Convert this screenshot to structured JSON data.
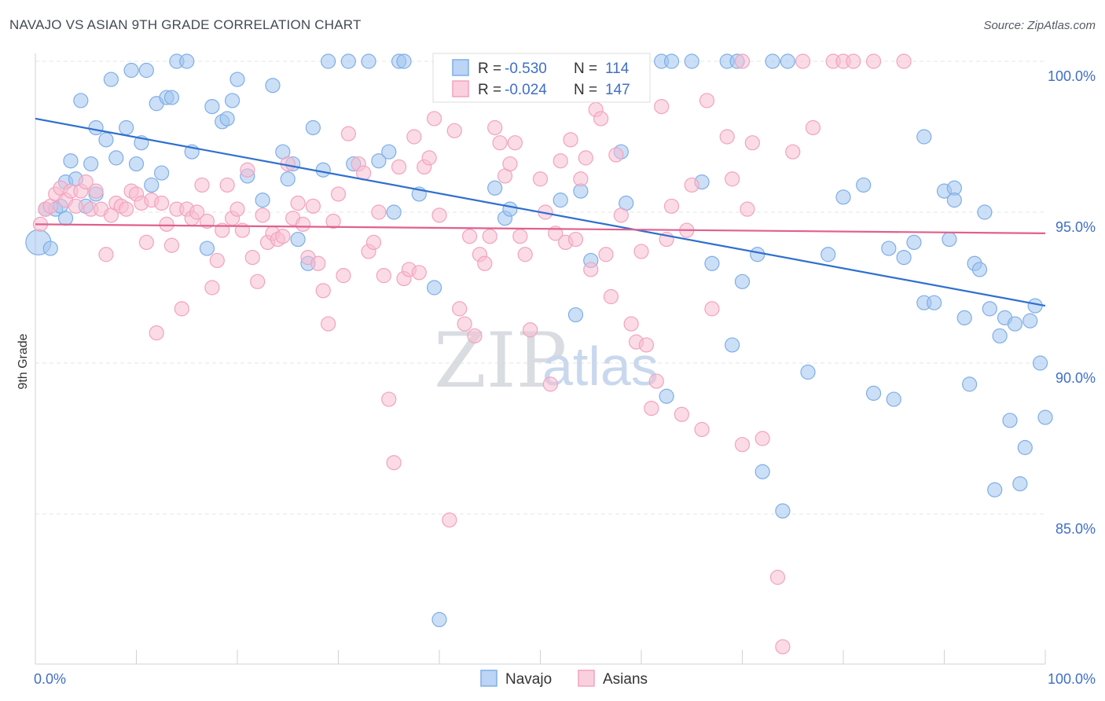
{
  "title": "NAVAJO VS ASIAN 9TH GRADE CORRELATION CHART",
  "source": "Source: ZipAtlas.com",
  "chart_data": {
    "type": "scatter",
    "title": "NAVAJO VS ASIAN 9TH GRADE CORRELATION CHART",
    "xlabel": "",
    "ylabel": "9th Grade",
    "xlim": [
      0,
      100
    ],
    "ylim": [
      80.0,
      101.0
    ],
    "x_tick_labels": [
      "0.0%",
      "100.0%"
    ],
    "y_ticks": [
      85.0,
      90.0,
      95.0,
      100.0
    ],
    "y_tick_labels": [
      "85.0%",
      "90.0%",
      "95.0%",
      "100.0%"
    ],
    "grid": true,
    "legend_position": "top-center",
    "watermark": {
      "part1": "ZIP",
      "part2": "atlas"
    },
    "stats": [
      {
        "r_label": "R = ",
        "r_value": "-0.530",
        "n_label": "N = ",
        "n_value": "114"
      },
      {
        "r_label": "R = ",
        "r_value": "-0.024",
        "n_label": "N = ",
        "n_value": "147"
      }
    ],
    "series": [
      {
        "name": "Navajo",
        "color": "#7faee6",
        "line_color": "#2f6fcf",
        "trend": {
          "x": [
            0,
            100
          ],
          "y": [
            98.1,
            91.9
          ]
        },
        "points": [
          [
            0.3,
            94.0
          ],
          [
            1,
            95.1
          ],
          [
            1.5,
            93.8
          ],
          [
            2,
            95.1
          ],
          [
            2.5,
            95.2
          ],
          [
            3,
            96.0
          ],
          [
            3,
            94.8
          ],
          [
            3.5,
            96.7
          ],
          [
            4,
            96.1
          ],
          [
            4.5,
            98.7
          ],
          [
            5,
            95.2
          ],
          [
            5.5,
            96.6
          ],
          [
            6,
            97.8
          ],
          [
            6,
            95.6
          ],
          [
            7,
            97.4
          ],
          [
            7.5,
            99.4
          ],
          [
            8,
            96.8
          ],
          [
            9,
            97.8
          ],
          [
            9.5,
            99.7
          ],
          [
            10,
            96.6
          ],
          [
            10.5,
            97.3
          ],
          [
            11,
            99.7
          ],
          [
            11.5,
            95.9
          ],
          [
            12,
            98.6
          ],
          [
            12.5,
            96.3
          ],
          [
            13,
            98.8
          ],
          [
            13.5,
            98.8
          ],
          [
            14,
            100.0
          ],
          [
            15,
            100.0
          ],
          [
            15.5,
            97.0
          ],
          [
            17,
            93.8
          ],
          [
            17.5,
            98.5
          ],
          [
            18.5,
            98.0
          ],
          [
            19,
            98.1
          ],
          [
            19.5,
            98.7
          ],
          [
            20,
            99.4
          ],
          [
            21,
            96.2
          ],
          [
            22.5,
            95.4
          ],
          [
            23.5,
            99.2
          ],
          [
            24.5,
            97.0
          ],
          [
            25,
            96.1
          ],
          [
            25.5,
            96.6
          ],
          [
            26,
            94.1
          ],
          [
            27,
            93.3
          ],
          [
            27.5,
            97.8
          ],
          [
            28.5,
            96.4
          ],
          [
            29,
            100.0
          ],
          [
            31,
            100.0
          ],
          [
            31.5,
            96.6
          ],
          [
            33,
            100.0
          ],
          [
            34,
            96.7
          ],
          [
            35,
            97.0
          ],
          [
            35.5,
            95.0
          ],
          [
            36,
            100.0
          ],
          [
            36.5,
            100.0
          ],
          [
            38,
            95.6
          ],
          [
            39.5,
            92.5
          ],
          [
            41,
            100.0
          ],
          [
            45.5,
            95.8
          ],
          [
            46.5,
            94.8
          ],
          [
            47,
            95.1
          ],
          [
            52,
            95.4
          ],
          [
            53,
            100.0
          ],
          [
            53.5,
            91.6
          ],
          [
            54,
            95.7
          ],
          [
            55,
            93.4
          ],
          [
            58,
            97.0
          ],
          [
            58.5,
            95.3
          ],
          [
            62,
            100.0
          ],
          [
            62.5,
            88.9
          ],
          [
            63,
            100.0
          ],
          [
            65,
            100.0
          ],
          [
            66,
            96.0
          ],
          [
            67,
            93.3
          ],
          [
            68.5,
            100.0
          ],
          [
            69,
            90.6
          ],
          [
            69.5,
            100.0
          ],
          [
            70,
            92.7
          ],
          [
            71.5,
            93.6
          ],
          [
            72,
            86.4
          ],
          [
            73,
            100.0
          ],
          [
            74,
            85.1
          ],
          [
            74.5,
            100.0
          ],
          [
            76.5,
            89.7
          ],
          [
            78.5,
            93.6
          ],
          [
            80,
            95.5
          ],
          [
            82,
            95.9
          ],
          [
            83,
            89.0
          ],
          [
            84.5,
            93.8
          ],
          [
            85,
            88.8
          ],
          [
            86,
            93.5
          ],
          [
            87,
            94.0
          ],
          [
            88,
            97.5
          ],
          [
            88,
            92.0
          ],
          [
            89,
            92.0
          ],
          [
            90,
            95.7
          ],
          [
            90.5,
            94.1
          ],
          [
            91,
            95.8
          ],
          [
            91,
            95.4
          ],
          [
            92,
            91.5
          ],
          [
            92.5,
            89.3
          ],
          [
            93,
            93.3
          ],
          [
            93.5,
            93.1
          ],
          [
            94,
            95.0
          ],
          [
            94.5,
            91.8
          ],
          [
            95,
            85.8
          ],
          [
            95.5,
            90.9
          ],
          [
            96,
            91.5
          ],
          [
            96.5,
            88.1
          ],
          [
            97,
            91.3
          ],
          [
            97.5,
            86.0
          ],
          [
            98,
            87.2
          ],
          [
            98.5,
            91.4
          ],
          [
            99,
            91.9
          ],
          [
            99.5,
            90.0
          ],
          [
            100,
            88.2
          ],
          [
            40,
            81.5
          ]
        ]
      },
      {
        "name": "Asians",
        "color": "#f2a3bd",
        "line_color": "#e0608e",
        "trend": {
          "x": [
            0,
            100
          ],
          "y": [
            94.6,
            94.3
          ]
        },
        "points": [
          [
            0.5,
            94.6
          ],
          [
            1,
            95.1
          ],
          [
            1.5,
            95.2
          ],
          [
            2,
            95.6
          ],
          [
            2.5,
            95.8
          ],
          [
            3,
            95.4
          ],
          [
            3.5,
            95.7
          ],
          [
            4,
            95.2
          ],
          [
            4.5,
            95.7
          ],
          [
            5,
            96.0
          ],
          [
            5.5,
            95.1
          ],
          [
            6,
            95.7
          ],
          [
            6.5,
            95.1
          ],
          [
            7,
            93.6
          ],
          [
            7.5,
            94.9
          ],
          [
            8,
            95.3
          ],
          [
            8.5,
            95.2
          ],
          [
            9,
            95.1
          ],
          [
            9.5,
            95.7
          ],
          [
            10,
            95.6
          ],
          [
            10.5,
            95.3
          ],
          [
            11,
            94.0
          ],
          [
            11.5,
            95.4
          ],
          [
            12,
            91.0
          ],
          [
            12.5,
            95.3
          ],
          [
            13,
            94.6
          ],
          [
            13.5,
            93.9
          ],
          [
            14,
            95.1
          ],
          [
            14.5,
            91.8
          ],
          [
            15,
            95.1
          ],
          [
            15.5,
            94.8
          ],
          [
            16,
            95.0
          ],
          [
            16.5,
            95.9
          ],
          [
            17,
            94.7
          ],
          [
            17.5,
            92.5
          ],
          [
            18,
            93.4
          ],
          [
            18.5,
            94.4
          ],
          [
            19,
            95.9
          ],
          [
            19.5,
            94.8
          ],
          [
            20,
            95.1
          ],
          [
            20.5,
            94.4
          ],
          [
            21,
            96.4
          ],
          [
            21.5,
            93.5
          ],
          [
            22,
            92.7
          ],
          [
            22.5,
            94.9
          ],
          [
            23,
            94.0
          ],
          [
            23.5,
            94.3
          ],
          [
            24,
            94.1
          ],
          [
            24.5,
            94.2
          ],
          [
            25,
            96.6
          ],
          [
            25.5,
            94.8
          ],
          [
            26,
            95.3
          ],
          [
            26.5,
            94.6
          ],
          [
            27,
            93.5
          ],
          [
            27.5,
            95.2
          ],
          [
            28,
            93.3
          ],
          [
            28.5,
            92.4
          ],
          [
            29,
            91.3
          ],
          [
            29.5,
            94.7
          ],
          [
            30,
            95.6
          ],
          [
            30.5,
            92.9
          ],
          [
            31,
            97.6
          ],
          [
            32,
            96.6
          ],
          [
            32.5,
            96.3
          ],
          [
            33,
            93.7
          ],
          [
            33.5,
            94.0
          ],
          [
            34,
            95.0
          ],
          [
            34.5,
            92.9
          ],
          [
            35,
            88.8
          ],
          [
            35.5,
            86.7
          ],
          [
            36,
            96.5
          ],
          [
            36.5,
            92.8
          ],
          [
            37,
            93.1
          ],
          [
            37.5,
            97.5
          ],
          [
            38,
            93.0
          ],
          [
            38.5,
            96.5
          ],
          [
            39,
            96.8
          ],
          [
            39.5,
            98.1
          ],
          [
            40,
            94.9
          ],
          [
            41,
            84.8
          ],
          [
            41.5,
            97.7
          ],
          [
            42,
            91.8
          ],
          [
            42.5,
            91.3
          ],
          [
            43,
            94.2
          ],
          [
            43.5,
            90.9
          ],
          [
            44,
            93.6
          ],
          [
            44.5,
            93.3
          ],
          [
            45,
            94.2
          ],
          [
            45.5,
            97.8
          ],
          [
            46,
            97.3
          ],
          [
            46.5,
            96.2
          ],
          [
            47,
            96.6
          ],
          [
            47.5,
            97.3
          ],
          [
            48,
            94.2
          ],
          [
            48.5,
            93.6
          ],
          [
            49,
            91.1
          ],
          [
            50,
            96.1
          ],
          [
            50.5,
            95.0
          ],
          [
            51,
            89.3
          ],
          [
            51.5,
            94.3
          ],
          [
            52,
            96.7
          ],
          [
            52.5,
            94.0
          ],
          [
            53,
            97.4
          ],
          [
            53.5,
            94.1
          ],
          [
            54,
            96.1
          ],
          [
            54.5,
            96.8
          ],
          [
            55,
            93.1
          ],
          [
            55.5,
            98.4
          ],
          [
            56,
            98.1
          ],
          [
            56.5,
            93.6
          ],
          [
            57,
            92.2
          ],
          [
            57.5,
            96.9
          ],
          [
            58,
            94.9
          ],
          [
            59,
            91.3
          ],
          [
            59.5,
            90.7
          ],
          [
            60,
            93.7
          ],
          [
            60.5,
            90.6
          ],
          [
            61,
            88.5
          ],
          [
            61.5,
            89.4
          ],
          [
            62,
            98.5
          ],
          [
            62.5,
            94.1
          ],
          [
            63,
            95.2
          ],
          [
            64,
            88.3
          ],
          [
            64.5,
            94.4
          ],
          [
            65,
            95.9
          ],
          [
            66,
            87.8
          ],
          [
            66.5,
            98.7
          ],
          [
            67,
            91.8
          ],
          [
            68.5,
            97.5
          ],
          [
            69,
            96.1
          ],
          [
            70,
            87.3
          ],
          [
            70.5,
            95.1
          ],
          [
            71,
            97.3
          ],
          [
            72,
            87.5
          ],
          [
            73.5,
            82.9
          ],
          [
            74,
            80.6
          ],
          [
            75,
            97.0
          ],
          [
            76,
            100.0
          ],
          [
            77,
            97.8
          ],
          [
            79,
            100.0
          ],
          [
            80,
            100.0
          ],
          [
            81,
            100.0
          ],
          [
            83,
            100.0
          ],
          [
            86,
            100.0
          ],
          [
            70,
            100.0
          ]
        ]
      }
    ]
  }
}
